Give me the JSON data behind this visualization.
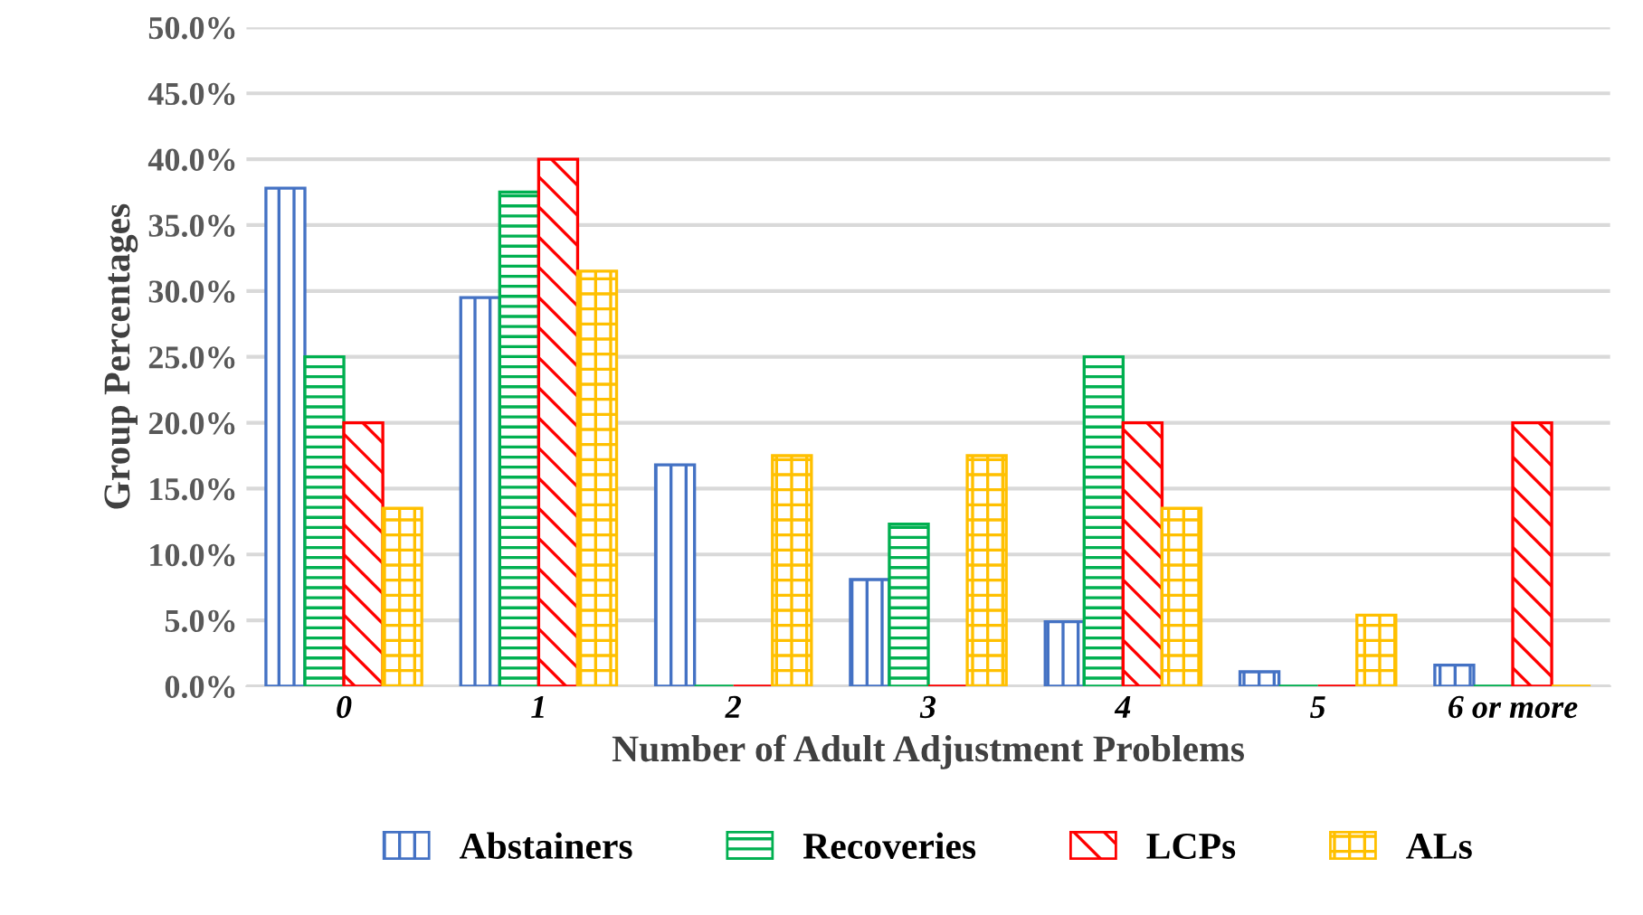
{
  "chart_data": {
    "type": "bar",
    "xlabel": "Number of Adult Adjustment Problems",
    "ylabel": "Group Percentages",
    "categories": [
      "0",
      "1",
      "2",
      "3",
      "4",
      "5",
      "6 or more"
    ],
    "series": [
      {
        "name": "Abstainers",
        "color": "#4472c4",
        "values": [
          37.8,
          29.5,
          16.8,
          8.1,
          4.9,
          1.1,
          1.6
        ]
      },
      {
        "name": "Recoveries",
        "color": "#00b050",
        "values": [
          25.0,
          37.5,
          0,
          12.3,
          25.0,
          0,
          0
        ]
      },
      {
        "name": "LCPs",
        "color": "#ff0000",
        "values": [
          20.0,
          40.0,
          0,
          0,
          20.0,
          0,
          20.0
        ]
      },
      {
        "name": "ALs",
        "color": "#ffc000",
        "values": [
          13.5,
          31.5,
          17.5,
          17.5,
          13.5,
          5.4,
          0
        ]
      }
    ],
    "ylim": [
      0,
      50
    ],
    "yticks": [
      {
        "value": 0,
        "label": "0.0%"
      },
      {
        "value": 5,
        "label": "5.0%"
      },
      {
        "value": 10,
        "label": "10.0%"
      },
      {
        "value": 15,
        "label": "15.0%"
      },
      {
        "value": 20,
        "label": "20.0%"
      },
      {
        "value": 25,
        "label": "25.0%"
      },
      {
        "value": 30,
        "label": "30.0%"
      },
      {
        "value": 35,
        "label": "35.0%"
      },
      {
        "value": 40,
        "label": "40.0%"
      },
      {
        "value": 45,
        "label": "45.0%"
      },
      {
        "value": 50,
        "label": "50.0%"
      }
    ],
    "grid": "y",
    "legend": "bottom"
  }
}
